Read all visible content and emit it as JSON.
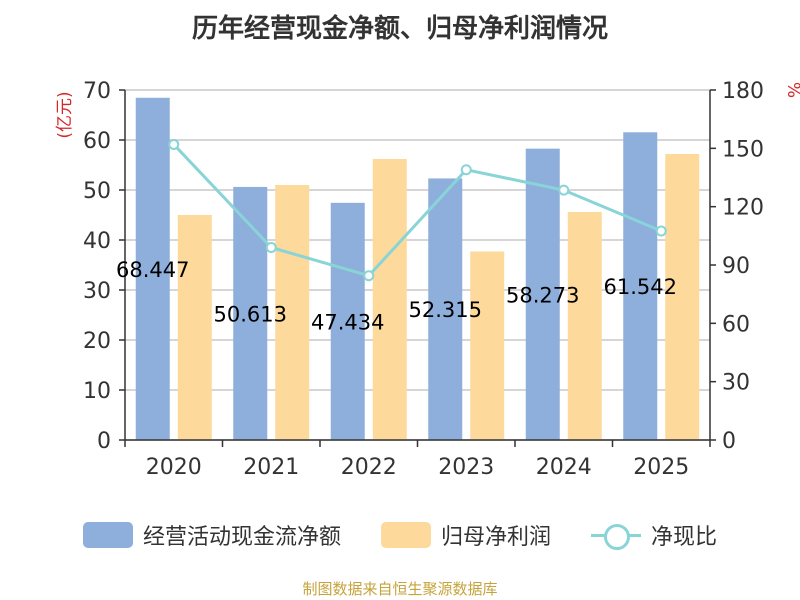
{
  "title": "历年经营现金净额、归母净利润情况",
  "source": "制图数据来自恒生聚源数据库",
  "chart_data": {
    "type": "bar",
    "categories": [
      "2020",
      "2021",
      "2022",
      "2023",
      "2024",
      "2025"
    ],
    "left_axis": {
      "label": "(亿元)",
      "min": 0,
      "max": 70,
      "ticks": [
        0,
        10,
        20,
        30,
        40,
        50,
        60,
        70
      ]
    },
    "right_axis": {
      "label": "%",
      "min": 0,
      "max": 180,
      "ticks": [
        0,
        30,
        60,
        90,
        120,
        150,
        180
      ]
    },
    "grid": true,
    "legend_position": "bottom",
    "series": [
      {
        "name": "经营活动现金流净额",
        "type": "bar",
        "axis": "left",
        "color": "#8eaedb",
        "values": [
          68.447,
          50.613,
          47.434,
          52.315,
          58.273,
          61.542
        ],
        "labels": [
          "68.447",
          "50.613",
          "47.434",
          "52.315",
          "58.273",
          "61.542"
        ]
      },
      {
        "name": "归母净利润",
        "type": "bar",
        "axis": "left",
        "color": "#fdd99b",
        "values": [
          45,
          51,
          56.2,
          37.7,
          45.6,
          57.2
        ]
      },
      {
        "name": "净现比",
        "type": "line",
        "axis": "right",
        "color": "#89d4d7",
        "values": [
          152,
          99,
          84.5,
          139,
          128.5,
          107.5
        ]
      }
    ]
  }
}
